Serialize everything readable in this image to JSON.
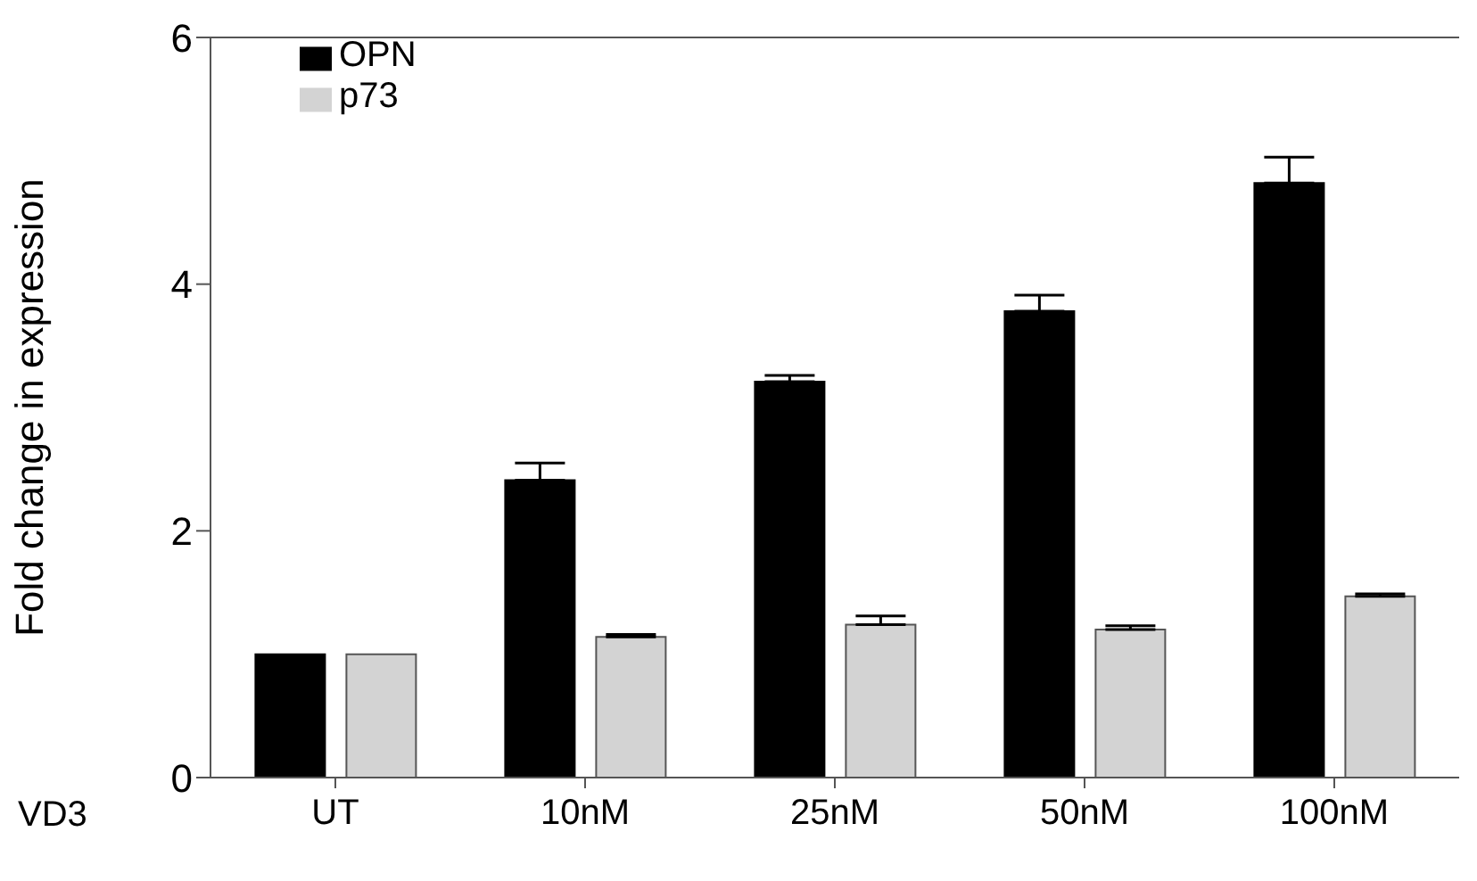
{
  "chart_data": {
    "type": "bar",
    "ylabel": "Fold change in expression",
    "annotations": [
      "VD3"
    ],
    "categories": [
      "UT",
      "10nM",
      "25nM",
      "50nM",
      "100nM"
    ],
    "series": [
      {
        "name": "OPN",
        "color": "#000000",
        "values": [
          1.0,
          2.41,
          3.21,
          3.78,
          4.82
        ],
        "errors": [
          null,
          [
            2.41,
            2.55
          ],
          [
            3.21,
            3.26
          ],
          [
            3.78,
            3.91
          ],
          [
            4.82,
            5.03
          ]
        ]
      },
      {
        "name": "p73",
        "color": "#d3d3d3",
        "values": [
          1.0,
          1.14,
          1.24,
          1.2,
          1.47
        ],
        "errors": [
          null,
          [
            1.14,
            1.16
          ],
          [
            1.24,
            1.31
          ],
          [
            1.2,
            1.23
          ],
          [
            1.47,
            1.49
          ]
        ]
      }
    ],
    "ylim": [
      0,
      6
    ],
    "yticks": [
      0,
      2,
      4,
      6
    ],
    "grid": false,
    "legend": "top left"
  }
}
